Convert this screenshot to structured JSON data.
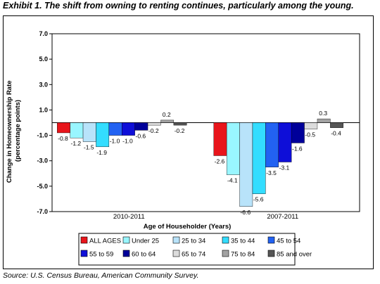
{
  "title": "Exhibit 1. The shift from owning to renting continues, particularly among the young.",
  "source": "Source: U.S. Census Bureau, American Community Survey.",
  "chart_data": {
    "type": "bar",
    "xlabel": "Age of Householder (Years)",
    "ylabel_lines": [
      "Change in Homeownership Rate",
      "(percentage points)"
    ],
    "categories": [
      "2010-2011",
      "2007-2011"
    ],
    "yticks": [
      "7.0",
      "5.0",
      "3.0",
      "1.0",
      "-1.0",
      "-3.0",
      "-5.0",
      "-7.0"
    ],
    "ylim": [
      -7,
      7
    ],
    "grid": false,
    "legend_position": "bottom",
    "series": [
      {
        "name": "ALL AGES",
        "color": "#e8151b",
        "values": [
          -0.8,
          -2.6
        ],
        "labels": [
          "-0.8",
          "-2.6"
        ]
      },
      {
        "name": "Under 25",
        "color": "#99f6ff",
        "values": [
          -1.2,
          -4.1
        ],
        "labels": [
          "-1.2",
          "-4.1"
        ]
      },
      {
        "name": "25 to 34",
        "color": "#b8e3fa",
        "values": [
          -1.5,
          -6.6
        ],
        "labels": [
          "-1.5",
          "-6.6"
        ]
      },
      {
        "name": "35 to 44",
        "color": "#33ddff",
        "values": [
          -1.9,
          -5.6
        ],
        "labels": [
          "-1.9",
          "-5.6"
        ]
      },
      {
        "name": "45 to 54",
        "color": "#2262f2",
        "values": [
          -1.0,
          -3.5
        ],
        "labels": [
          "-1.0",
          "-3.5"
        ]
      },
      {
        "name": "55 to 59",
        "color": "#0e0ed8",
        "values": [
          -1.0,
          -3.1
        ],
        "labels": [
          "-1.0",
          "-3.1"
        ]
      },
      {
        "name": "60 to 64",
        "color": "#00009a",
        "values": [
          -0.6,
          -1.6
        ],
        "labels": [
          "-0.6",
          "-1.6"
        ]
      },
      {
        "name": "65 to 74",
        "color": "#dcdcdc",
        "values": [
          -0.2,
          -0.5
        ],
        "labels": [
          "-0.2",
          "-0.5"
        ]
      },
      {
        "name": "75 to 84",
        "color": "#a2a2a2",
        "values": [
          0.2,
          0.3
        ],
        "labels": [
          "0.2",
          "0.3"
        ]
      },
      {
        "name": "85 and over",
        "color": "#555555",
        "values": [
          -0.2,
          -0.4
        ],
        "labels": [
          "-0.2",
          "-0.4"
        ]
      }
    ]
  }
}
